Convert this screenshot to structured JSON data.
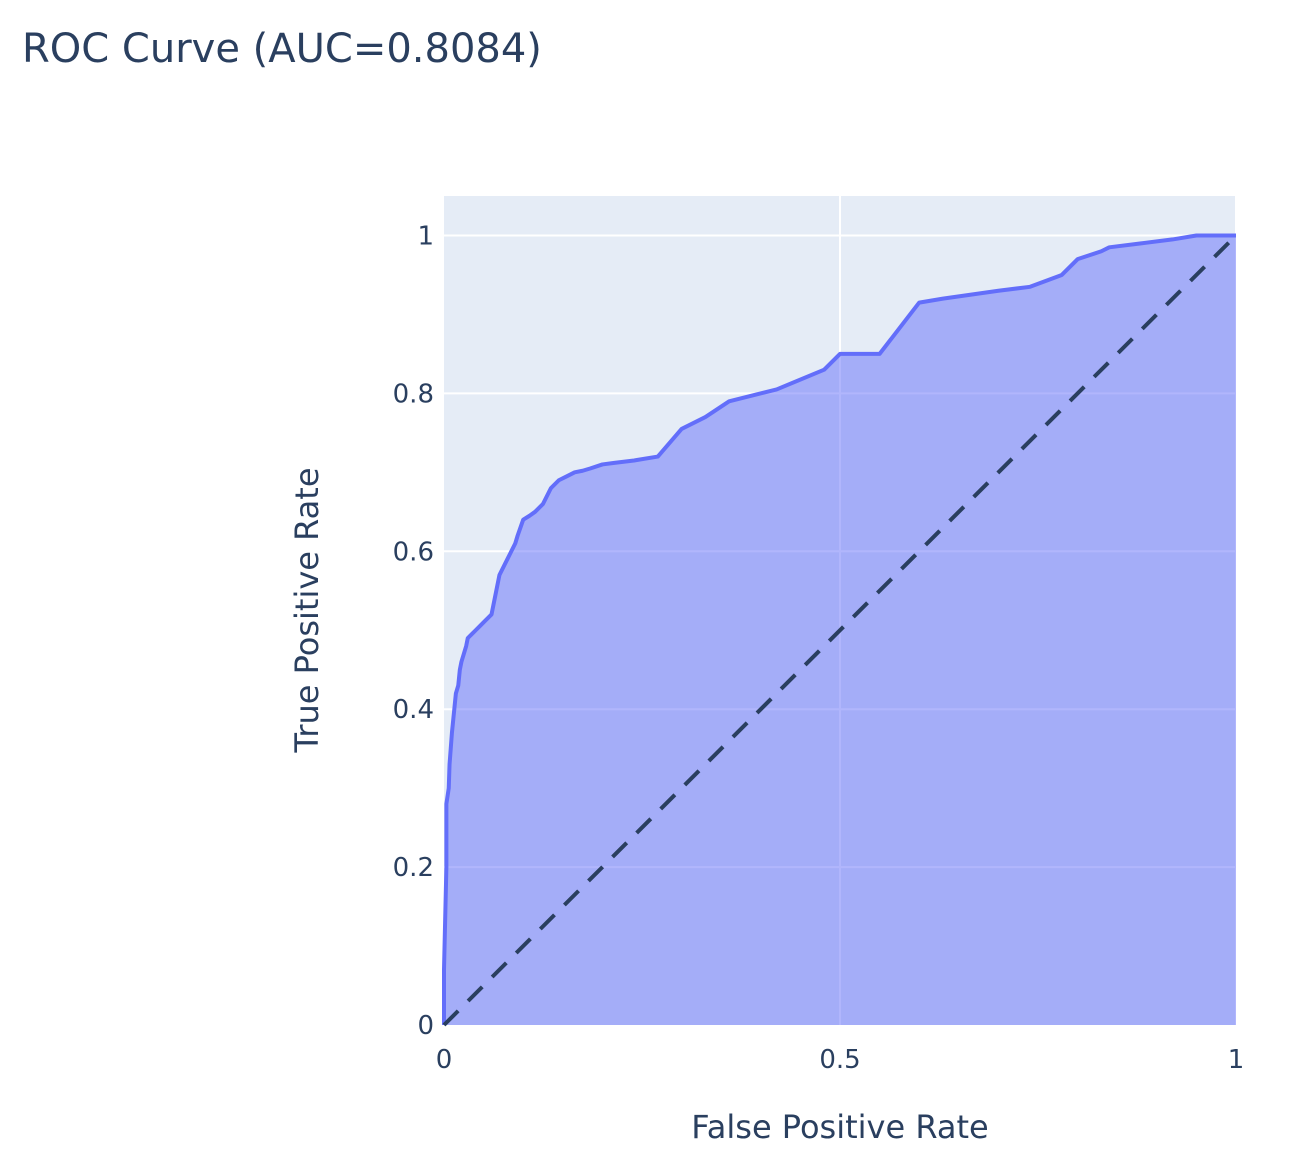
{
  "chart_data": {
    "type": "area",
    "title": "ROC Curve (AUC=0.8084)",
    "xlabel": "False Positive Rate",
    "ylabel": "True Positive Rate",
    "xlim": [
      0,
      1
    ],
    "ylim": [
      0,
      1.05
    ],
    "x_ticks": [
      0,
      0.5,
      1
    ],
    "x_tick_labels": [
      "0",
      "0.5",
      "1"
    ],
    "y_ticks": [
      0,
      0.2,
      0.4,
      0.6,
      0.8,
      1
    ],
    "y_tick_labels": [
      "0",
      "0.2",
      "0.4",
      "0.6",
      "0.8",
      "1"
    ],
    "grid": true,
    "legend": false,
    "colors": {
      "plot_background": "#e5ecf6",
      "grid": "#ffffff",
      "curve_line": "#636efa",
      "curve_fill": "rgba(99,110,250,0.5)",
      "diagonal": "#2a3f5f",
      "text": "#2a3f5f"
    },
    "series": [
      {
        "kind": "roc_curve",
        "x": [
          0,
          0,
          0.003,
          0.003,
          0.006,
          0.007,
          0.01,
          0.012,
          0.013,
          0.015,
          0.018,
          0.02,
          0.022,
          0.025,
          0.028,
          0.03,
          0.035,
          0.04,
          0.045,
          0.05,
          0.06,
          0.07,
          0.08,
          0.085,
          0.09,
          0.093,
          0.1,
          0.108,
          0.115,
          0.125,
          0.135,
          0.145,
          0.155,
          0.165,
          0.175,
          0.185,
          0.2,
          0.215,
          0.24,
          0.27,
          0.3,
          0.33,
          0.36,
          0.42,
          0.48,
          0.5,
          0.55,
          0.6,
          0.63,
          0.7,
          0.74,
          0.78,
          0.8,
          0.83,
          0.84,
          0.88,
          0.92,
          0.95,
          0.97,
          1
        ],
        "y": [
          0,
          0.07,
          0.2,
          0.28,
          0.3,
          0.33,
          0.37,
          0.39,
          0.4,
          0.42,
          0.43,
          0.45,
          0.46,
          0.47,
          0.48,
          0.49,
          0.495,
          0.5,
          0.505,
          0.51,
          0.52,
          0.57,
          0.59,
          0.6,
          0.61,
          0.62,
          0.64,
          0.645,
          0.65,
          0.66,
          0.68,
          0.69,
          0.695,
          0.7,
          0.702,
          0.705,
          0.71,
          0.712,
          0.715,
          0.72,
          0.755,
          0.77,
          0.79,
          0.805,
          0.83,
          0.85,
          0.85,
          0.915,
          0.92,
          0.93,
          0.935,
          0.95,
          0.97,
          0.98,
          0.985,
          0.99,
          0.995,
          1,
          1,
          1
        ]
      },
      {
        "kind": "reference_diagonal",
        "x": [
          0,
          1
        ],
        "y": [
          0,
          1
        ]
      }
    ]
  }
}
